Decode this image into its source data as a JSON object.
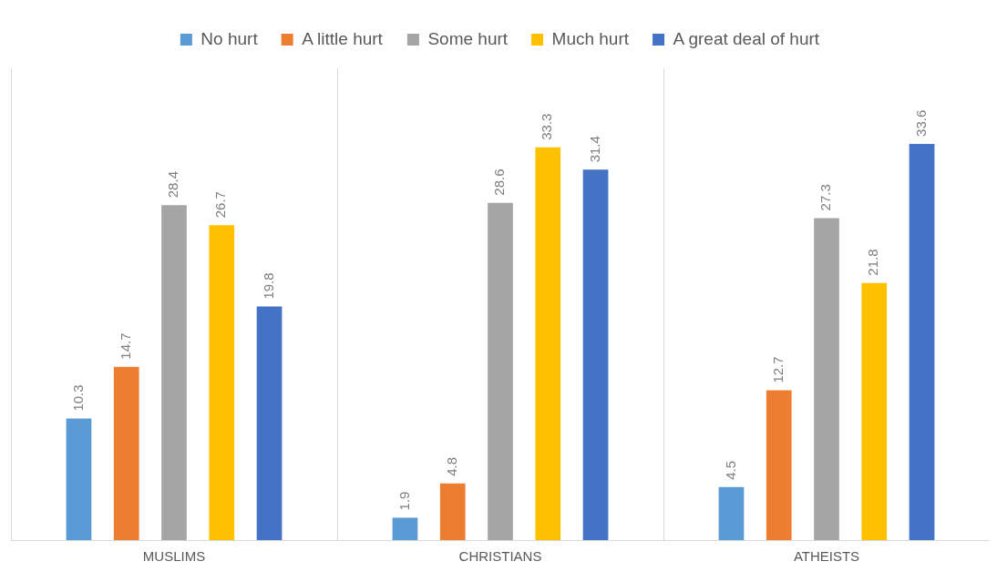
{
  "chart_data": {
    "type": "bar",
    "categories": [
      "MUSLIMS",
      "CHRISTIANS",
      "ATHEISTS"
    ],
    "series": [
      {
        "name": "No hurt",
        "color": "#5b9bd5",
        "values": [
          10.3,
          1.9,
          4.5
        ]
      },
      {
        "name": "A little hurt",
        "color": "#ed7d31",
        "values": [
          14.7,
          4.8,
          12.7
        ]
      },
      {
        "name": "Some hurt",
        "color": "#a5a5a5",
        "values": [
          28.4,
          28.6,
          27.3
        ]
      },
      {
        "name": "Much hurt",
        "color": "#ffc000",
        "values": [
          26.7,
          33.3,
          21.8
        ]
      },
      {
        "name": "A great deal of hurt",
        "color": "#4472c4",
        "values": [
          19.8,
          31.4,
          33.6
        ]
      }
    ],
    "tick_labels": "x",
    "data_labels": true,
    "grid": "x",
    "legend": "top"
  }
}
